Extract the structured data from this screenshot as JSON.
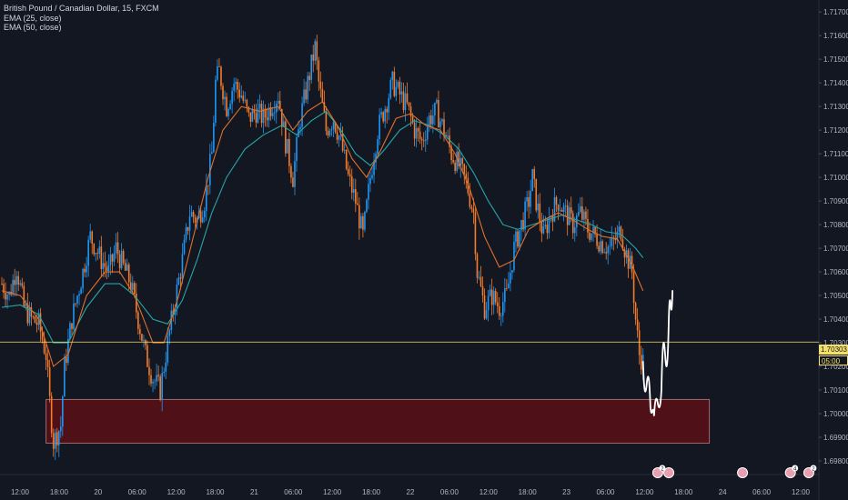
{
  "legend": {
    "symbol": "British Pound / Canadian Dollar, 15, FXCM",
    "ema1": "EMA (25, close)",
    "ema2": "EMA (50, close)"
  },
  "current_price": {
    "value": "1.70303",
    "countdown": "05:00"
  },
  "colors": {
    "background": "#131722",
    "bull": "#2196f3",
    "bear": "#f57c2b",
    "ema25": "#e0702a",
    "ema50": "#26a6a6",
    "zone_fill": "#5a0f16",
    "zone_border": "#9b6a6e",
    "price_line": "#f3e06b",
    "projection": "#ffffff"
  },
  "chart_data": {
    "type": "candlestick",
    "title": "British Pound / Canadian Dollar, 15, FXCM",
    "ylim": [
      1.6975,
      1.7172
    ],
    "y_ticks": [
      "1.71700",
      "1.71600",
      "1.71500",
      "1.71400",
      "1.71300",
      "1.71200",
      "1.71100",
      "1.71000",
      "1.70900",
      "1.70800",
      "1.70700",
      "1.70600",
      "1.70500",
      "1.70400",
      "1.70300",
      "1.70200",
      "1.70100",
      "1.70000",
      "1.69900",
      "1.69800"
    ],
    "x_ticks": [
      "12:00",
      "18:00",
      "20",
      "06:00",
      "12:00",
      "18:00",
      "21",
      "06:00",
      "12:00",
      "18:00",
      "22",
      "06:00",
      "12:00",
      "18:00",
      "23",
      "06:00",
      "12:00",
      "18:00",
      "24",
      "06:00",
      "12:00"
    ],
    "price_path": [
      [
        0,
        1.7055
      ],
      [
        2,
        1.705
      ],
      [
        4,
        1.7062
      ],
      [
        6,
        1.7045
      ],
      [
        8,
        1.704
      ],
      [
        10,
        1.7038
      ],
      [
        12,
        1.7025
      ],
      [
        13,
        1.7005
      ],
      [
        14,
        1.6988
      ],
      [
        16,
        1.6995
      ],
      [
        17,
        1.702
      ],
      [
        19,
        1.704
      ],
      [
        22,
        1.706
      ],
      [
        24,
        1.7075
      ],
      [
        27,
        1.7065
      ],
      [
        29,
        1.706
      ],
      [
        31,
        1.707
      ],
      [
        33,
        1.7062
      ],
      [
        35,
        1.7055
      ],
      [
        37,
        1.704
      ],
      [
        39,
        1.7025
      ],
      [
        41,
        1.7015
      ],
      [
        43,
        1.701
      ],
      [
        45,
        1.703
      ],
      [
        47,
        1.7048
      ],
      [
        49,
        1.7065
      ],
      [
        51,
        1.7085
      ],
      [
        53,
        1.7082
      ],
      [
        55,
        1.709
      ],
      [
        57,
        1.711
      ],
      [
        58,
        1.714
      ],
      [
        59,
        1.7145
      ],
      [
        61,
        1.713
      ],
      [
        63,
        1.714
      ],
      [
        65,
        1.7135
      ],
      [
        67,
        1.7125
      ],
      [
        69,
        1.7128
      ],
      [
        71,
        1.7125
      ],
      [
        73,
        1.713
      ],
      [
        75,
        1.7135
      ],
      [
        77,
        1.7115
      ],
      [
        79,
        1.71
      ],
      [
        81,
        1.7125
      ],
      [
        83,
        1.714
      ],
      [
        85,
        1.7155
      ],
      [
        86,
        1.714
      ],
      [
        88,
        1.712
      ],
      [
        90,
        1.7125
      ],
      [
        92,
        1.7115
      ],
      [
        94,
        1.71
      ],
      [
        96,
        1.709
      ],
      [
        98,
        1.7075
      ],
      [
        100,
        1.71
      ],
      [
        102,
        1.712
      ],
      [
        104,
        1.713
      ],
      [
        106,
        1.714
      ],
      [
        108,
        1.7135
      ],
      [
        110,
        1.713
      ],
      [
        112,
        1.712
      ],
      [
        114,
        1.7115
      ],
      [
        116,
        1.7125
      ],
      [
        118,
        1.7128
      ],
      [
        120,
        1.712
      ],
      [
        122,
        1.711
      ],
      [
        124,
        1.7105
      ],
      [
        126,
        1.7098
      ],
      [
        128,
        1.7085
      ],
      [
        129,
        1.706
      ],
      [
        131,
        1.7045
      ],
      [
        133,
        1.705
      ],
      [
        135,
        1.7045
      ],
      [
        137,
        1.705
      ],
      [
        139,
        1.707
      ],
      [
        141,
        1.708
      ],
      [
        143,
        1.709
      ],
      [
        144,
        1.71
      ],
      [
        145,
        1.709
      ],
      [
        147,
        1.7075
      ],
      [
        149,
        1.7085
      ],
      [
        151,
        1.709
      ],
      [
        153,
        1.7085
      ],
      [
        155,
        1.708
      ],
      [
        157,
        1.7085
      ],
      [
        159,
        1.7078
      ],
      [
        161,
        1.7075
      ],
      [
        163,
        1.7072
      ],
      [
        165,
        1.707
      ],
      [
        167,
        1.7075
      ],
      [
        168,
        1.7078
      ],
      [
        169,
        1.707
      ],
      [
        171,
        1.706
      ],
      [
        172,
        1.704
      ],
      [
        173,
        1.7025
      ],
      [
        174,
        1.7022
      ]
    ],
    "ema_25_path": [
      [
        0,
        1.7052
      ],
      [
        5,
        1.705
      ],
      [
        10,
        1.704
      ],
      [
        14,
        1.702
      ],
      [
        18,
        1.7025
      ],
      [
        23,
        1.705
      ],
      [
        28,
        1.706
      ],
      [
        32,
        1.706
      ],
      [
        36,
        1.705
      ],
      [
        41,
        1.703
      ],
      [
        44,
        1.703
      ],
      [
        48,
        1.705
      ],
      [
        52,
        1.7075
      ],
      [
        56,
        1.71
      ],
      [
        60,
        1.712
      ],
      [
        65,
        1.713
      ],
      [
        70,
        1.7128
      ],
      [
        75,
        1.713
      ],
      [
        79,
        1.712
      ],
      [
        83,
        1.7128
      ],
      [
        87,
        1.7132
      ],
      [
        91,
        1.7122
      ],
      [
        95,
        1.7108
      ],
      [
        99,
        1.71
      ],
      [
        103,
        1.7112
      ],
      [
        107,
        1.7125
      ],
      [
        111,
        1.7127
      ],
      [
        115,
        1.7122
      ],
      [
        119,
        1.712
      ],
      [
        123,
        1.711
      ],
      [
        127,
        1.7095
      ],
      [
        131,
        1.7075
      ],
      [
        135,
        1.7062
      ],
      [
        139,
        1.7065
      ],
      [
        143,
        1.7078
      ],
      [
        147,
        1.7082
      ],
      [
        151,
        1.7085
      ],
      [
        155,
        1.7082
      ],
      [
        159,
        1.7078
      ],
      [
        163,
        1.7075
      ],
      [
        167,
        1.7074
      ],
      [
        171,
        1.7063
      ],
      [
        174,
        1.7052
      ]
    ],
    "ema_50_path": [
      [
        0,
        1.7045
      ],
      [
        5,
        1.7046
      ],
      [
        10,
        1.7042
      ],
      [
        14,
        1.703
      ],
      [
        18,
        1.703
      ],
      [
        23,
        1.7045
      ],
      [
        28,
        1.7055
      ],
      [
        32,
        1.7055
      ],
      [
        36,
        1.705
      ],
      [
        41,
        1.704
      ],
      [
        45,
        1.7038
      ],
      [
        49,
        1.7048
      ],
      [
        53,
        1.7065
      ],
      [
        57,
        1.7085
      ],
      [
        61,
        1.71
      ],
      [
        66,
        1.7112
      ],
      [
        71,
        1.7118
      ],
      [
        76,
        1.7122
      ],
      [
        80,
        1.7118
      ],
      [
        84,
        1.7124
      ],
      [
        88,
        1.7128
      ],
      [
        92,
        1.712
      ],
      [
        96,
        1.711
      ],
      [
        100,
        1.7105
      ],
      [
        104,
        1.7112
      ],
      [
        108,
        1.712
      ],
      [
        112,
        1.7124
      ],
      [
        116,
        1.7122
      ],
      [
        120,
        1.7118
      ],
      [
        124,
        1.7112
      ],
      [
        128,
        1.7102
      ],
      [
        132,
        1.709
      ],
      [
        136,
        1.708
      ],
      [
        140,
        1.7078
      ],
      [
        144,
        1.708
      ],
      [
        148,
        1.7082
      ],
      [
        152,
        1.7084
      ],
      [
        156,
        1.7082
      ],
      [
        160,
        1.708
      ],
      [
        164,
        1.7077
      ],
      [
        168,
        1.7076
      ],
      [
        172,
        1.707
      ],
      [
        174,
        1.7066
      ]
    ],
    "demand_zone": {
      "from_bar": 12,
      "to_bar": 192,
      "low": 1.69875,
      "high": 1.7006
    },
    "projection_path": [
      [
        174,
        1.7022
      ],
      [
        176,
        1.7003
      ],
      [
        177,
        1.6999
      ],
      [
        179,
        1.701
      ],
      [
        181,
        1.704
      ],
      [
        182,
        1.7052
      ]
    ],
    "current_price_line": 1.70303,
    "event_markers": [
      {
        "bar": 178,
        "label": "2"
      },
      {
        "bar": 181,
        "label": ""
      },
      {
        "bar": 201,
        "label": ""
      },
      {
        "bar": 214,
        "label": "4"
      },
      {
        "bar": 219,
        "label": "2"
      }
    ],
    "grid": false
  }
}
